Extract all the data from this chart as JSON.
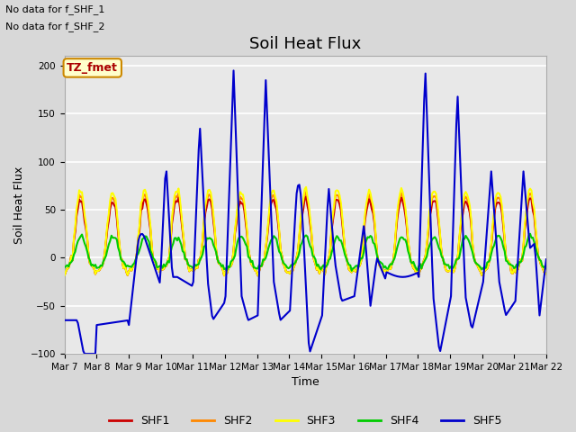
{
  "title": "Soil Heat Flux",
  "xlabel": "Time",
  "ylabel": "Soil Heat Flux",
  "ylim": [
    -100,
    210
  ],
  "yticks": [
    -100,
    -50,
    0,
    50,
    100,
    150,
    200
  ],
  "xtick_labels": [
    "Mar 7",
    "Mar 8",
    "Mar 9",
    "Mar 10",
    "Mar 11",
    "Mar 12",
    "Mar 13",
    "Mar 14",
    "Mar 15",
    "Mar 16",
    "Mar 17",
    "Mar 18",
    "Mar 19",
    "Mar 20",
    "Mar 21",
    "Mar 22"
  ],
  "text_no_data_1": "No data for f_SHF_1",
  "text_no_data_2": "No data for f_SHF_2",
  "legend_label": "TZ_fmet",
  "legend_entries": [
    "SHF1",
    "SHF2",
    "SHF3",
    "SHF4",
    "SHF5"
  ],
  "legend_colors": [
    "#cc0000",
    "#ff8800",
    "#ffff00",
    "#00cc00",
    "#0000cc"
  ],
  "background_color": "#d8d8d8",
  "plot_bg_color": "#e8e8e8",
  "grid_color": "#ffffff",
  "title_fontsize": 13,
  "label_fontsize": 9,
  "tick_fontsize": 7.5
}
